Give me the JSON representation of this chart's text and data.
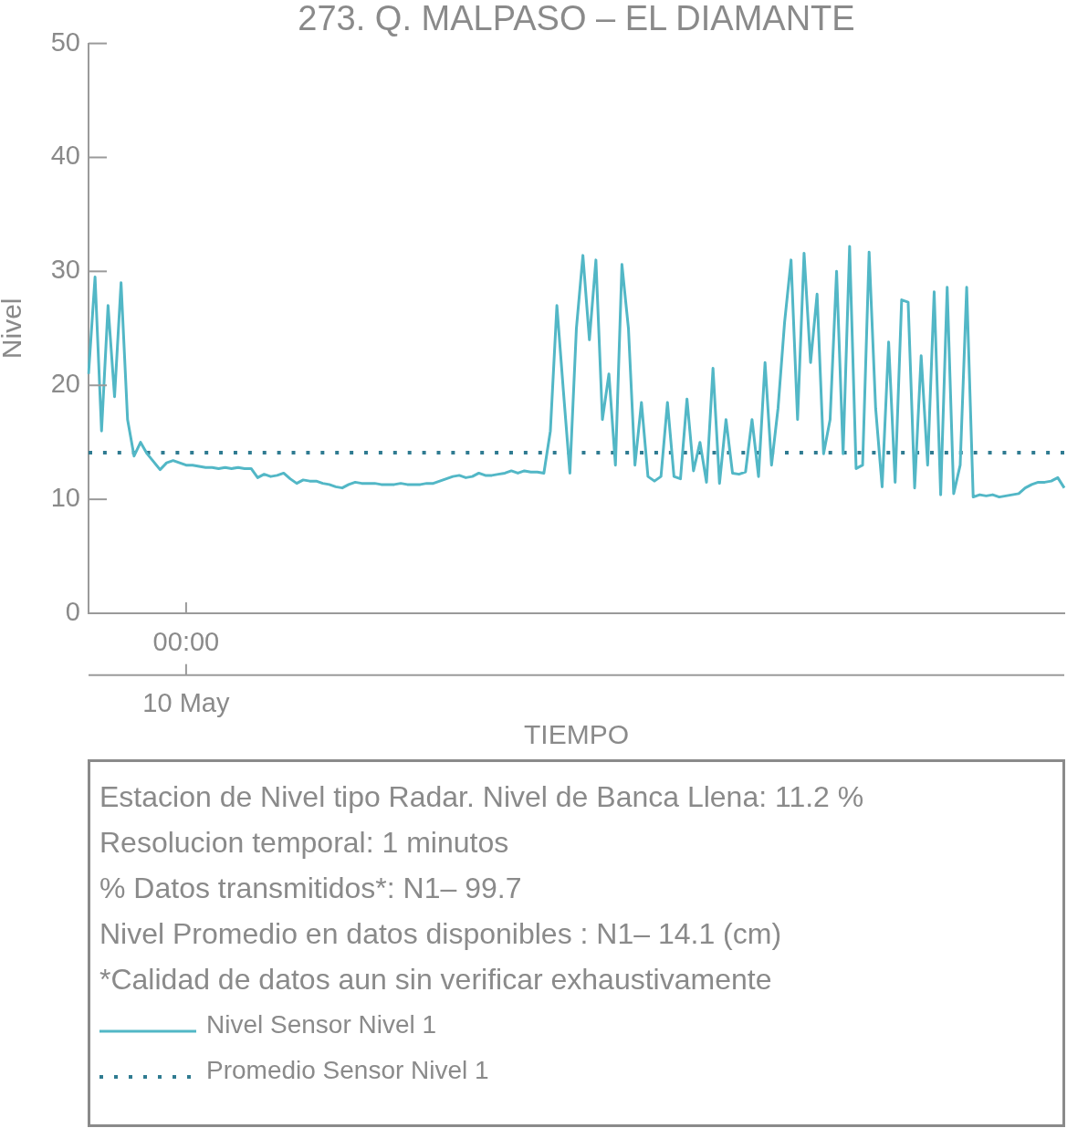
{
  "chart_data": {
    "type": "line",
    "title": "273. Q. MALPASO – EL DIAMANTE",
    "xlabel": "TIEMPO",
    "ylabel": "Nivel",
    "categories": [
      null,
      null,
      null,
      null,
      null,
      null,
      null,
      null,
      null,
      null,
      null,
      null,
      null,
      null,
      null,
      "00:00\n10 May",
      null,
      null,
      null,
      null,
      null,
      null,
      null,
      null,
      null,
      null,
      null,
      null,
      null,
      null,
      null,
      null,
      null,
      null,
      null,
      null,
      null,
      null,
      null,
      null,
      null,
      null,
      null,
      null,
      null,
      null,
      null,
      null,
      null,
      null,
      null,
      null,
      null,
      null,
      null,
      null,
      null,
      null,
      null,
      null,
      null,
      null,
      null,
      null,
      null,
      null,
      null,
      null,
      null,
      null,
      null,
      null,
      null,
      null,
      null,
      null,
      null,
      null,
      null,
      null,
      null,
      null,
      null,
      null,
      null,
      null,
      null,
      null,
      null,
      null,
      null,
      null,
      null,
      null,
      null,
      null,
      null,
      null,
      null,
      null,
      null,
      null,
      null,
      null,
      null,
      null,
      null,
      null,
      null,
      null,
      null,
      null,
      null,
      null,
      null,
      null,
      null,
      null,
      null,
      null,
      null,
      null,
      null,
      null,
      null,
      null,
      null,
      null,
      null,
      null,
      null,
      null,
      null,
      null,
      null,
      null,
      null,
      null,
      null,
      null,
      null,
      null,
      null,
      null,
      null,
      null,
      null,
      null,
      null,
      null,
      null
    ],
    "series": [
      {
        "name": "Nivel Sensor Nivel 1",
        "color": "#52b7c6",
        "line_style": "solid",
        "values": [
          21,
          29.5,
          16,
          27,
          19,
          29,
          17,
          13.8,
          15,
          14,
          13.3,
          12.6,
          13.2,
          13.4,
          13.2,
          13.0,
          13.0,
          12.9,
          12.8,
          12.8,
          12.7,
          12.8,
          12.7,
          12.8,
          12.7,
          12.7,
          11.9,
          12.2,
          12.0,
          12.1,
          12.3,
          11.8,
          11.4,
          11.7,
          11.6,
          11.6,
          11.4,
          11.3,
          11.1,
          11.0,
          11.3,
          11.5,
          11.4,
          11.4,
          11.4,
          11.3,
          11.3,
          11.3,
          11.4,
          11.3,
          11.3,
          11.3,
          11.4,
          11.4,
          11.6,
          11.8,
          12.0,
          12.1,
          11.9,
          12.0,
          12.3,
          12.1,
          12.1,
          12.2,
          12.3,
          12.5,
          12.3,
          12.5,
          12.4,
          12.4,
          12.3,
          16,
          27,
          19.5,
          12.3,
          25,
          31.4,
          24,
          31,
          17,
          21,
          13,
          30.6,
          25,
          13,
          18.5,
          12,
          11.6,
          12,
          18.5,
          12,
          11.8,
          18.8,
          12.5,
          15,
          11.5,
          21.5,
          11.4,
          17,
          12.3,
          12.2,
          12.4,
          17,
          12,
          22,
          13,
          18,
          25.5,
          31,
          17,
          31.6,
          22,
          28,
          14,
          17,
          30,
          14,
          32.2,
          12.7,
          13,
          31.7,
          18,
          11.1,
          23.8,
          11.5,
          27.5,
          27.3,
          11,
          22.6,
          13,
          28.2,
          10.4,
          28.6,
          10.5,
          13,
          28.6,
          10.2,
          10.4,
          10.3,
          10.4,
          10.2,
          10.3,
          10.4,
          10.5,
          11.0,
          11.3,
          11.5,
          11.5,
          11.6,
          11.9,
          11.0
        ]
      },
      {
        "name": "Promedio Sensor Nivel 1",
        "color": "#2f7b91",
        "line_style": "dotted",
        "values": [
          14.1,
          14.1,
          14.1,
          14.1,
          14.1,
          14.1,
          14.1,
          14.1,
          14.1,
          14.1,
          14.1,
          14.1,
          14.1,
          14.1,
          14.1,
          14.1,
          14.1,
          14.1,
          14.1,
          14.1,
          14.1,
          14.1,
          14.1,
          14.1,
          14.1,
          14.1,
          14.1,
          14.1,
          14.1,
          14.1,
          14.1,
          14.1,
          14.1,
          14.1,
          14.1,
          14.1,
          14.1,
          14.1,
          14.1,
          14.1,
          14.1,
          14.1,
          14.1,
          14.1,
          14.1,
          14.1,
          14.1,
          14.1,
          14.1,
          14.1,
          14.1,
          14.1,
          14.1,
          14.1,
          14.1,
          14.1,
          14.1,
          14.1,
          14.1,
          14.1,
          14.1,
          14.1,
          14.1,
          14.1,
          14.1,
          14.1,
          14.1,
          14.1,
          14.1,
          14.1,
          14.1,
          14.1,
          14.1,
          14.1,
          14.1,
          14.1,
          14.1,
          14.1,
          14.1,
          14.1,
          14.1,
          14.1,
          14.1,
          14.1,
          14.1,
          14.1,
          14.1,
          14.1,
          14.1,
          14.1,
          14.1,
          14.1,
          14.1,
          14.1,
          14.1,
          14.1,
          14.1,
          14.1,
          14.1,
          14.1,
          14.1,
          14.1,
          14.1,
          14.1,
          14.1,
          14.1,
          14.1,
          14.1,
          14.1,
          14.1,
          14.1,
          14.1,
          14.1,
          14.1,
          14.1,
          14.1,
          14.1,
          14.1,
          14.1,
          14.1,
          14.1,
          14.1,
          14.1,
          14.1,
          14.1,
          14.1,
          14.1,
          14.1,
          14.1,
          14.1,
          14.1,
          14.1,
          14.1,
          14.1,
          14.1,
          14.1,
          14.1,
          14.1,
          14.1,
          14.1,
          14.1,
          14.1,
          14.1,
          14.1,
          14.1,
          14.1,
          14.1,
          14.1,
          14.1,
          14.1,
          14.1
        ]
      }
    ],
    "ylim": [
      0,
      50
    ],
    "yticks": [
      0,
      10,
      20,
      30,
      40,
      50
    ],
    "legend": "bottom",
    "annotations": [
      "Estacion de Nivel tipo Radar. Nivel de Banca Llena: 11.2 %",
      "Resolucion temporal: 1 minutos",
      "% Datos transmitidos*: N1– 99.7",
      "Nivel Promedio en datos disponibles : N1– 14.1 (cm)",
      "*Calidad de datos aun sin verificar exhaustivamente"
    ]
  }
}
